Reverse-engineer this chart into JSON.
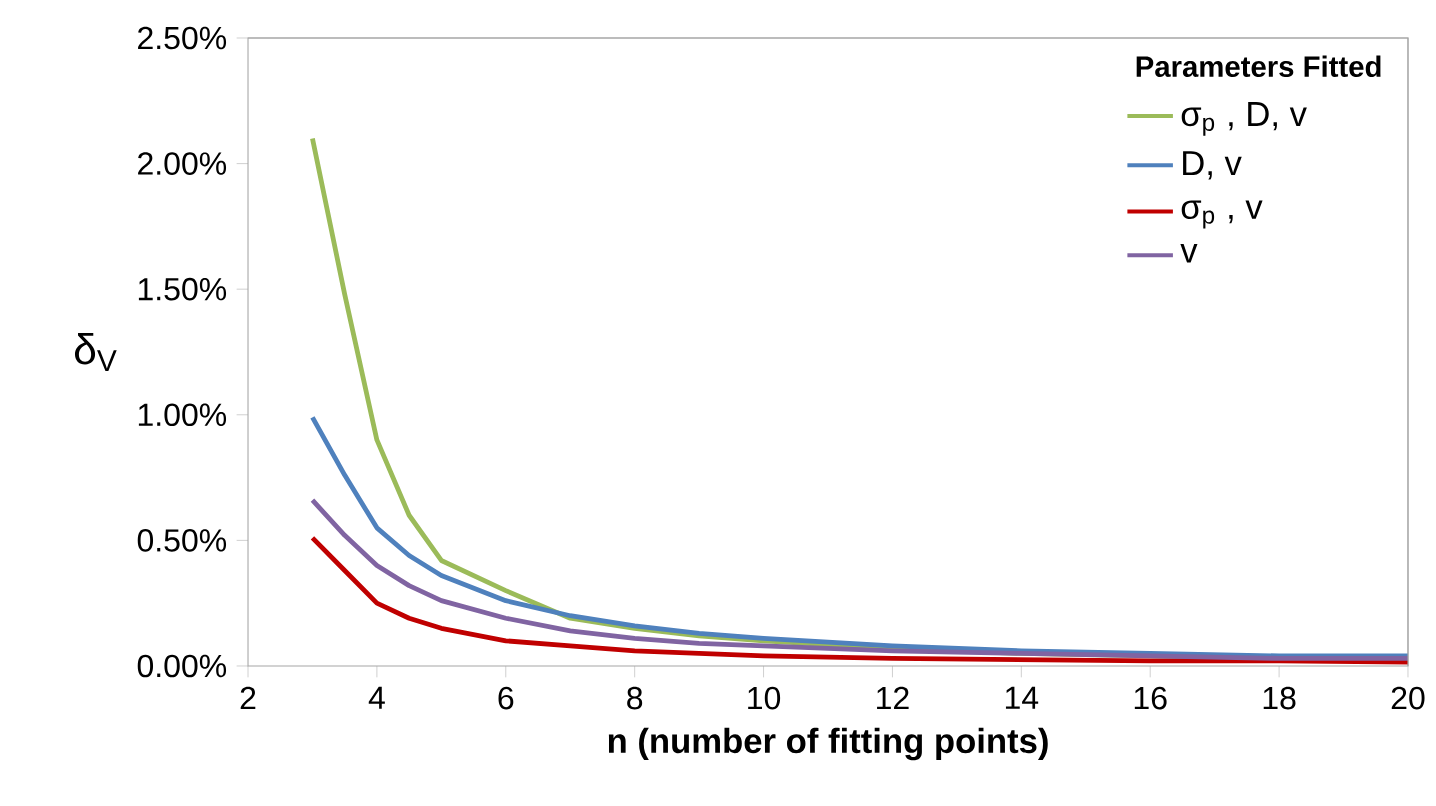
{
  "chart_data": {
    "type": "line",
    "xlabel": "n (number of fitting points)",
    "ylabel": "δ$_{V}$",
    "legend_title": "Parameters Fitted",
    "x": [
      3,
      3.5,
      4,
      4.5,
      5,
      6,
      7,
      8,
      9,
      10,
      12,
      14,
      16,
      18,
      20
    ],
    "series": [
      {
        "name": "σ$_{p}$ , D, v",
        "color": "#9bbb59",
        "values": [
          2.1,
          1.48,
          0.9,
          0.6,
          0.42,
          0.3,
          0.19,
          0.15,
          0.12,
          0.1,
          0.07,
          0.05,
          0.04,
          0.03,
          0.03
        ]
      },
      {
        "name": "D, v",
        "color": "#4f81bd",
        "values": [
          0.99,
          0.76,
          0.55,
          0.44,
          0.36,
          0.26,
          0.2,
          0.16,
          0.13,
          0.11,
          0.08,
          0.06,
          0.05,
          0.04,
          0.04
        ]
      },
      {
        "name": "σ$_{p}$ , v",
        "color": "#c00000",
        "values": [
          0.51,
          0.38,
          0.25,
          0.19,
          0.15,
          0.1,
          0.08,
          0.06,
          0.05,
          0.04,
          0.03,
          0.025,
          0.02,
          0.02,
          0.015
        ]
      },
      {
        "name": "v",
        "color": "#8064a2",
        "values": [
          0.66,
          0.52,
          0.4,
          0.32,
          0.26,
          0.19,
          0.14,
          0.11,
          0.09,
          0.08,
          0.06,
          0.05,
          0.04,
          0.03,
          0.03
        ]
      }
    ],
    "xlim": [
      2,
      20
    ],
    "xticks": [
      2,
      4,
      6,
      8,
      10,
      12,
      14,
      16,
      18,
      20
    ],
    "ylim": [
      0,
      2.5
    ],
    "yticks": [
      {
        "value": 0,
        "label": "0.00%"
      },
      {
        "value": 0.5,
        "label": "0.50%"
      },
      {
        "value": 1,
        "label": "1.00%"
      },
      {
        "value": 1.5,
        "label": "1.50%"
      },
      {
        "value": 2,
        "label": "2.00%"
      },
      {
        "value": 2.5,
        "label": "2.50%"
      }
    ],
    "legend": "top right",
    "grid": false,
    "marker": "none",
    "line_style": "solid"
  }
}
